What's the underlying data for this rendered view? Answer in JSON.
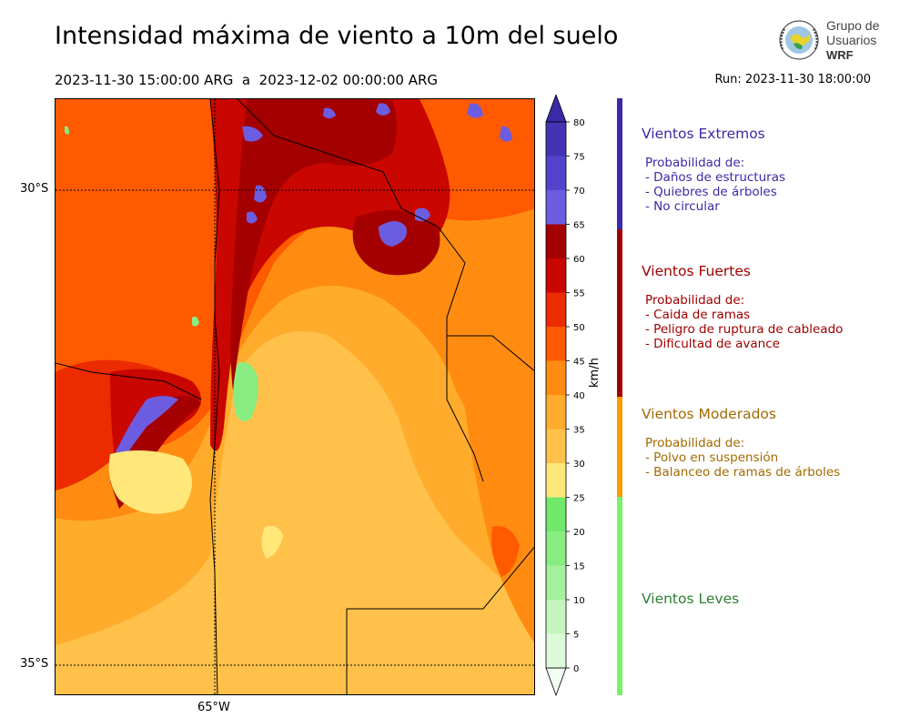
{
  "header": {
    "title": "Intensidad máxima de viento a 10m del suelo",
    "period": "2023-11-30 15:00:00 ARG  a  2023-12-02 00:00:00 ARG",
    "run": "Run: 2023-11-30 18:00:00"
  },
  "logo": {
    "line1": "Grupo de",
    "line2": "Usuarios",
    "line3": "WRF",
    "icon": "globe-laurel-icon"
  },
  "map": {
    "lat_labels": [
      "30°S",
      "35°S"
    ],
    "lon_labels": [
      "65°W"
    ]
  },
  "colorbar": {
    "unit": "km/h",
    "ticks": [
      "0",
      "5",
      "10",
      "15",
      "20",
      "25",
      "30",
      "35",
      "40",
      "45",
      "50",
      "55",
      "60",
      "65",
      "70",
      "75",
      "80"
    ],
    "colors": [
      "#f1fdf0",
      "#dcfad9",
      "#c3f5bd",
      "#a4f09c",
      "#89ec80",
      "#72e86a",
      "#ffe77a",
      "#ffc14a",
      "#ffac2c",
      "#ff8c10",
      "#ff5a00",
      "#ec2b00",
      "#c90600",
      "#a40000",
      "#6c5de0",
      "#5343cc",
      "#4434b4"
    ],
    "top_color": "#3a2aa8"
  },
  "categories": [
    {
      "title": "Vientos Extremos",
      "color": "#3a2aa8",
      "text_color": "#3a2aa8",
      "lines": [
        "Probabilidad de:",
        "- Daños de estructuras",
        "- Quiebres de árboles",
        "- No circular"
      ]
    },
    {
      "title": "Vientos Fuertes",
      "color": "#a00000",
      "text_color": "#a00000",
      "lines": [
        "Probabilidad de:",
        "- Caida de ramas",
        "- Peligro de ruptura de cableado",
        "- Dificultad de avance"
      ]
    },
    {
      "title": "Vientos Moderados",
      "color": "#ff9c00",
      "text_color": "#a36a00",
      "lines": [
        "Probabilidad de:",
        "- Polvo en suspensión",
        "- Balanceo de ramas de árboles"
      ]
    },
    {
      "title": "Vientos Leves",
      "color": "#78f06a",
      "text_color": "#2e7d32",
      "lines": []
    }
  ]
}
